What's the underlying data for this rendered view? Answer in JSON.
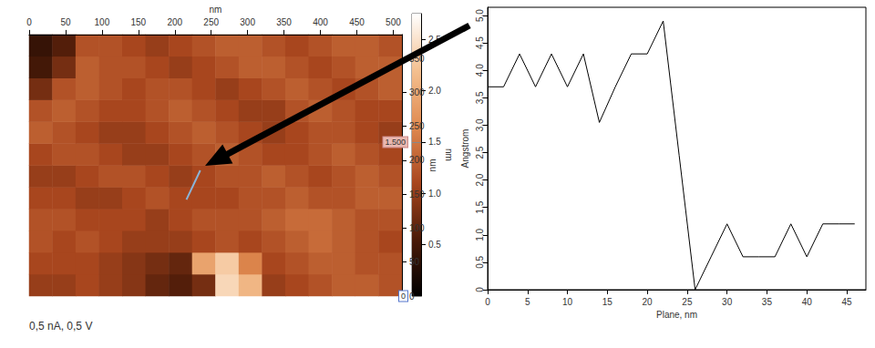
{
  "chart_data": [
    {
      "type": "heatmap",
      "x_label": "nm",
      "y_label": "nm",
      "xlim": [
        0,
        512
      ],
      "ylim": [
        0,
        385
      ],
      "xticks": [
        0,
        50,
        100,
        150,
        200,
        250,
        300,
        350,
        400,
        450,
        500
      ],
      "yticks": [
        0,
        50,
        100,
        150,
        200,
        250,
        300,
        350
      ],
      "cells": [
        [
          1.0,
          1.0,
          1.1,
          1.0,
          0.9,
          0.7,
          0.6,
          0.8,
          2.4,
          2.1,
          1.0,
          1.1,
          1.2,
          1.3,
          1.3,
          1.2
        ],
        [
          1.1,
          1.1,
          1.1,
          1.0,
          0.9,
          0.8,
          0.7,
          1.9,
          2.3,
          1.6,
          1.1,
          1.2,
          1.3,
          1.3,
          1.2,
          1.2
        ],
        [
          1.2,
          1.1,
          1.2,
          1.1,
          1.0,
          1.0,
          1.0,
          1.1,
          1.2,
          1.1,
          1.2,
          1.3,
          1.4,
          1.3,
          1.2,
          1.1
        ],
        [
          1.2,
          1.2,
          1.1,
          1.1,
          1.1,
          1.0,
          1.1,
          1.2,
          1.2,
          1.2,
          1.3,
          1.4,
          1.4,
          1.3,
          1.2,
          1.2
        ],
        [
          1.1,
          1.1,
          1.0,
          1.0,
          1.1,
          1.2,
          1.1,
          1.1,
          1.1,
          1.2,
          1.2,
          1.3,
          1.2,
          1.2,
          1.3,
          1.3
        ],
        [
          1.0,
          1.0,
          1.1,
          1.2,
          1.2,
          1.1,
          1.0,
          1.1,
          1.2,
          1.2,
          1.3,
          1.2,
          1.1,
          1.2,
          1.3,
          1.2
        ],
        [
          1.1,
          1.2,
          1.2,
          1.1,
          1.0,
          1.0,
          1.1,
          1.2,
          1.3,
          1.2,
          1.1,
          1.1,
          1.2,
          1.3,
          1.2,
          1.1
        ],
        [
          1.3,
          1.2,
          1.1,
          1.0,
          1.0,
          1.1,
          1.2,
          1.3,
          1.2,
          1.1,
          1.0,
          1.1,
          1.2,
          1.2,
          1.1,
          1.0
        ],
        [
          1.2,
          1.3,
          1.2,
          1.1,
          1.1,
          1.2,
          1.3,
          1.2,
          1.1,
          1.0,
          1.0,
          1.2,
          1.3,
          1.2,
          1.1,
          1.1
        ],
        [
          0.8,
          1.2,
          1.3,
          1.2,
          1.1,
          1.2,
          1.2,
          1.1,
          1.0,
          1.1,
          1.2,
          1.3,
          1.2,
          1.1,
          1.2,
          1.3
        ],
        [
          0.5,
          0.8,
          1.3,
          1.2,
          1.2,
          1.1,
          1.0,
          1.1,
          1.2,
          1.3,
          1.3,
          1.2,
          1.1,
          1.2,
          1.3,
          1.3
        ],
        [
          0.4,
          0.6,
          1.2,
          1.2,
          1.1,
          1.0,
          1.1,
          1.2,
          1.3,
          1.3,
          1.2,
          1.1,
          1.2,
          1.3,
          1.3,
          1.2
        ]
      ],
      "colorbar": {
        "label": "nm",
        "range": [
          0,
          2.75
        ],
        "colors": [
          "#000000",
          "#4a1a08",
          "#a8461e",
          "#e08a50",
          "#f4c090",
          "#ffffff"
        ],
        "ticks": [
          0.5,
          {
            "value": 1,
            "label": "1.0"
          },
          1.5,
          {
            "value": 2,
            "label": "2.0"
          },
          2.5
        ],
        "markers": [
          {
            "value": 1.5,
            "label": "1.500"
          },
          {
            "value": 0,
            "label": "0"
          }
        ]
      },
      "profile_line": {
        "x": [
          216,
          235
        ],
        "y": [
          142,
          185
        ],
        "color": "#8ab4d8"
      },
      "annotation": "0,5 nA, 0,5 V"
    },
    {
      "type": "line",
      "x_label": "Plane, nm",
      "y_label": "Angstrom",
      "x": [
        0,
        2,
        4,
        6,
        8,
        10,
        12,
        14,
        16,
        18,
        20,
        22,
        24,
        26,
        28,
        30,
        32,
        34,
        36,
        38,
        40,
        42,
        44,
        46
      ],
      "values": [
        3.7,
        3.7,
        4.3,
        3.7,
        4.3,
        3.7,
        4.3,
        3.05,
        3.7,
        4.3,
        4.3,
        4.9,
        2.45,
        0,
        0.6,
        1.2,
        0.6,
        0.6,
        0.6,
        1.2,
        0.6,
        1.2,
        1.2,
        1.2
      ],
      "color": "#000000",
      "xlim": [
        0,
        47.4
      ],
      "xticks": [
        0,
        5,
        10,
        15,
        20,
        25,
        30,
        35,
        40,
        45
      ],
      "ylim": [
        0,
        5.15
      ],
      "yticks": [
        0,
        0.5,
        {
          "value": 1,
          "label": "1.0"
        },
        1.5,
        {
          "value": 2,
          "label": "2.0"
        },
        2.5,
        {
          "value": 3,
          "label": "3.0"
        },
        3.5,
        {
          "value": 4,
          "label": "4.0"
        },
        4.5,
        {
          "value": 5,
          "label": "5.0"
        }
      ]
    }
  ]
}
